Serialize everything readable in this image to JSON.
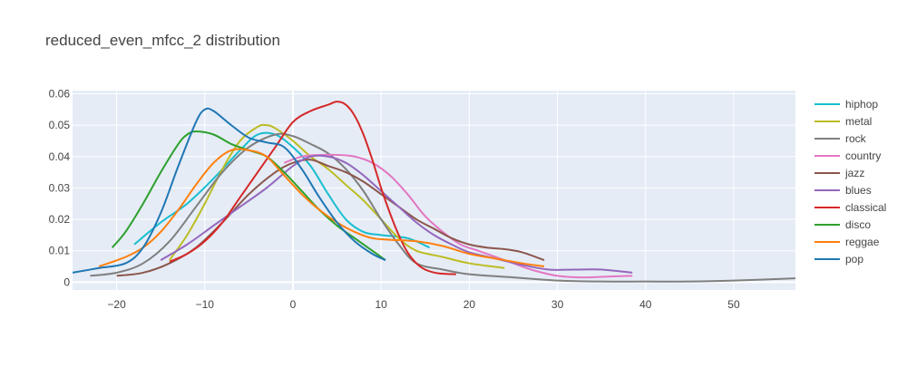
{
  "chart_data": {
    "type": "line",
    "title": "reduced_even_mfcc_2 distribution",
    "xlabel": "",
    "ylabel": "",
    "xlim": [
      -25,
      57
    ],
    "ylim": [
      -0.0025,
      0.061
    ],
    "x_ticks": [
      -20,
      -10,
      0,
      10,
      20,
      30,
      40,
      50
    ],
    "x_tick_labels": [
      "−20",
      "−10",
      "0",
      "10",
      "20",
      "30",
      "40",
      "50"
    ],
    "y_ticks": [
      0,
      0.01,
      0.02,
      0.03,
      0.04,
      0.05,
      0.06
    ],
    "y_tick_labels": [
      "0",
      "0.01",
      "0.02",
      "0.03",
      "0.04",
      "0.05",
      "0.06"
    ],
    "grid": true,
    "legend_position": "right",
    "plot_background": "#e5ecf6",
    "series": [
      {
        "name": "hiphop",
        "color": "#17becf",
        "x": [
          -18,
          -15,
          -12,
          -9,
          -6,
          -4,
          -2,
          0,
          2,
          4,
          6,
          8,
          10,
          13,
          15.5
        ],
        "y": [
          0.012,
          0.019,
          0.025,
          0.033,
          0.042,
          0.047,
          0.047,
          0.043,
          0.037,
          0.028,
          0.02,
          0.016,
          0.015,
          0.014,
          0.011
        ]
      },
      {
        "name": "metal",
        "color": "#bcbd22",
        "x": [
          -14,
          -12,
          -10,
          -8,
          -6,
          -4,
          -3,
          -2,
          0,
          2,
          4,
          6,
          8,
          10,
          12,
          14,
          17,
          20,
          24
        ],
        "y": [
          0.007,
          0.015,
          0.025,
          0.036,
          0.045,
          0.0495,
          0.05,
          0.049,
          0.045,
          0.04,
          0.036,
          0.031,
          0.026,
          0.02,
          0.014,
          0.01,
          0.008,
          0.006,
          0.0045
        ]
      },
      {
        "name": "rock",
        "color": "#7f7f7f",
        "x": [
          -23,
          -20,
          -17,
          -14,
          -11,
          -8,
          -5,
          -2,
          0,
          2,
          4,
          6,
          8,
          10,
          12,
          14,
          17,
          20,
          25,
          30,
          35,
          40,
          45,
          50,
          57
        ],
        "y": [
          0.002,
          0.003,
          0.006,
          0.013,
          0.024,
          0.035,
          0.043,
          0.047,
          0.0465,
          0.044,
          0.041,
          0.036,
          0.029,
          0.02,
          0.012,
          0.006,
          0.004,
          0.0025,
          0.0015,
          0.0005,
          0.0002,
          0.0002,
          0.0002,
          0.0005,
          0.0012
        ]
      },
      {
        "name": "country",
        "color": "#e377c2",
        "x": [
          -1,
          1,
          3,
          5,
          7,
          9,
          11,
          13,
          15,
          17,
          19,
          21,
          23,
          25,
          27,
          30,
          33,
          36,
          38.5
        ],
        "y": [
          0.038,
          0.04,
          0.0405,
          0.0405,
          0.04,
          0.038,
          0.034,
          0.028,
          0.021,
          0.016,
          0.012,
          0.01,
          0.008,
          0.006,
          0.004,
          0.002,
          0.0015,
          0.0018,
          0.002
        ]
      },
      {
        "name": "jazz",
        "color": "#8c564b",
        "x": [
          -20,
          -17,
          -14,
          -11,
          -8,
          -5,
          -2,
          0,
          2,
          4,
          6,
          8,
          10,
          12,
          14,
          16,
          18,
          20,
          22,
          24,
          26,
          28.5
        ],
        "y": [
          0.002,
          0.003,
          0.006,
          0.011,
          0.019,
          0.028,
          0.035,
          0.038,
          0.039,
          0.037,
          0.035,
          0.032,
          0.028,
          0.024,
          0.02,
          0.017,
          0.014,
          0.012,
          0.011,
          0.0105,
          0.0095,
          0.007
        ]
      },
      {
        "name": "blues",
        "color": "#9467bd",
        "x": [
          -15,
          -12,
          -9,
          -6,
          -3,
          0,
          2,
          4,
          6,
          8,
          10,
          12,
          14,
          16,
          18,
          20,
          23,
          26,
          29,
          32,
          35,
          38.5
        ],
        "y": [
          0.007,
          0.012,
          0.018,
          0.024,
          0.03,
          0.037,
          0.04,
          0.04,
          0.038,
          0.034,
          0.029,
          0.024,
          0.019,
          0.015,
          0.012,
          0.0095,
          0.0075,
          0.0055,
          0.004,
          0.004,
          0.004,
          0.003
        ]
      },
      {
        "name": "classical",
        "color": "#d62728",
        "x": [
          -14,
          -12,
          -10,
          -8,
          -6,
          -4,
          -2,
          0,
          2,
          4,
          5,
          6,
          7,
          8,
          9,
          10,
          11,
          12,
          13,
          14,
          15,
          16.5,
          18.5
        ],
        "y": [
          0.0065,
          0.009,
          0.013,
          0.019,
          0.027,
          0.035,
          0.043,
          0.051,
          0.0545,
          0.0565,
          0.0575,
          0.0565,
          0.053,
          0.047,
          0.039,
          0.03,
          0.022,
          0.015,
          0.0095,
          0.006,
          0.004,
          0.0028,
          0.0025
        ]
      },
      {
        "name": "disco",
        "color": "#2ca02c",
        "x": [
          -20.5,
          -19,
          -17,
          -15,
          -13,
          -12,
          -11,
          -9,
          -7,
          -5,
          -3,
          -1,
          1,
          3,
          5,
          7,
          9,
          10.5
        ],
        "y": [
          0.011,
          0.016,
          0.025,
          0.035,
          0.044,
          0.047,
          0.048,
          0.047,
          0.044,
          0.042,
          0.04,
          0.035,
          0.029,
          0.023,
          0.018,
          0.014,
          0.01,
          0.007
        ]
      },
      {
        "name": "reggae",
        "color": "#ff7f0e",
        "x": [
          -22,
          -19,
          -17,
          -15,
          -13,
          -11,
          -9,
          -7,
          -5,
          -3,
          -1,
          1,
          3,
          5,
          7,
          9,
          11,
          14,
          17,
          20,
          23,
          26,
          28.5
        ],
        "y": [
          0.005,
          0.008,
          0.011,
          0.016,
          0.023,
          0.031,
          0.038,
          0.042,
          0.042,
          0.04,
          0.034,
          0.028,
          0.023,
          0.019,
          0.016,
          0.014,
          0.0135,
          0.013,
          0.0115,
          0.009,
          0.0075,
          0.006,
          0.005
        ]
      },
      {
        "name": "pop",
        "color": "#1f77b4",
        "x": [
          -25,
          -22,
          -19,
          -17,
          -15,
          -13,
          -11,
          -10,
          -9,
          -7,
          -5,
          -3,
          -1,
          1,
          3,
          5,
          7,
          9,
          10.5
        ],
        "y": [
          0.003,
          0.0045,
          0.006,
          0.011,
          0.022,
          0.037,
          0.051,
          0.055,
          0.0545,
          0.05,
          0.046,
          0.0445,
          0.043,
          0.036,
          0.027,
          0.019,
          0.013,
          0.009,
          0.007
        ]
      }
    ]
  }
}
